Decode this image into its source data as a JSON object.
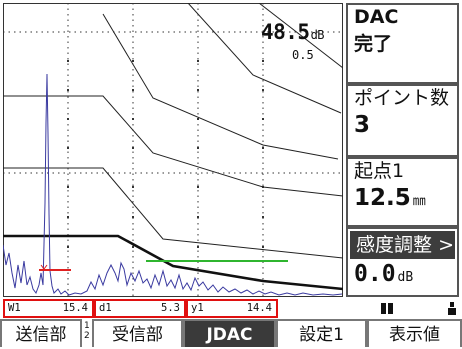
{
  "ascan": {
    "gain_value": "48.5",
    "gain_unit": "dB",
    "range_value": "0.5"
  },
  "colors": {
    "echo": "#3a3aa0",
    "gate_a": "#e02020",
    "gate_b": "#2fb52f",
    "dac": "#111111",
    "panel_active": "#3d3d3d"
  },
  "panel": {
    "dac_label": "DAC",
    "dac_status": "完了",
    "points_label": "ポイント数",
    "points_value": "3",
    "start_label": "起点1",
    "start_value": "12.5",
    "start_unit": "㎜",
    "sens_label": "感度調整",
    "sens_arrow": ">",
    "sens_value": "0.0",
    "sens_unit": "dB"
  },
  "readout": {
    "w_key": "W1",
    "w_value": "15.4",
    "d_key": "d1",
    "d_value": "5.3",
    "y_key": "y1",
    "y_value": "14.4"
  },
  "softkeys": [
    {
      "label": "送信部"
    },
    {
      "label": "受信部"
    },
    {
      "label": "JDAC"
    },
    {
      "label": "設定1"
    },
    {
      "label": "表示値"
    }
  ],
  "softkey_page": "1\n2"
}
